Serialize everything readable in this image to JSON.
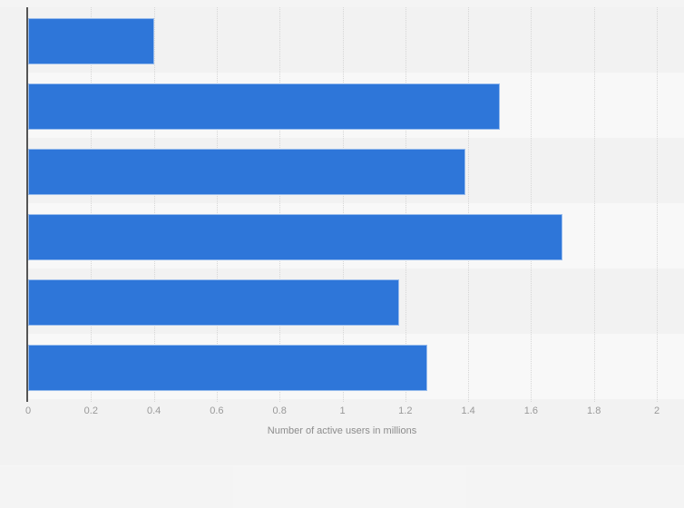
{
  "chart_data": {
    "type": "bar",
    "orientation": "horizontal",
    "categories": [
      "",
      "",
      "",
      "",
      "",
      ""
    ],
    "values": [
      0.4,
      1.5,
      1.39,
      1.7,
      1.18,
      1.27
    ],
    "xlabel": "Number of active users in millions",
    "ylabel": "",
    "xlim": [
      0,
      2
    ],
    "xticks": [
      0,
      0.2,
      0.4,
      0.6,
      0.8,
      1,
      1.2,
      1.4,
      1.6,
      1.8,
      2
    ],
    "xtick_labels": [
      "0",
      "0.2",
      "0.4",
      "0.6",
      "0.8",
      "1",
      "1.2",
      "1.4",
      "1.6",
      "1.8",
      "2"
    ],
    "grid": "vertical-dotted",
    "legend": "none",
    "row_bands": "alternating",
    "colors": {
      "bar": "#2e76d9",
      "bar_border": "rgba(255,255,255,0.5)",
      "background": "#f2f2f2",
      "row_band_light": "#f8f8f8",
      "axis_line": "#555555",
      "gridline": "#d6d6d6",
      "tick_text": "#999999",
      "axis_label_text": "#8c8c8c"
    }
  }
}
